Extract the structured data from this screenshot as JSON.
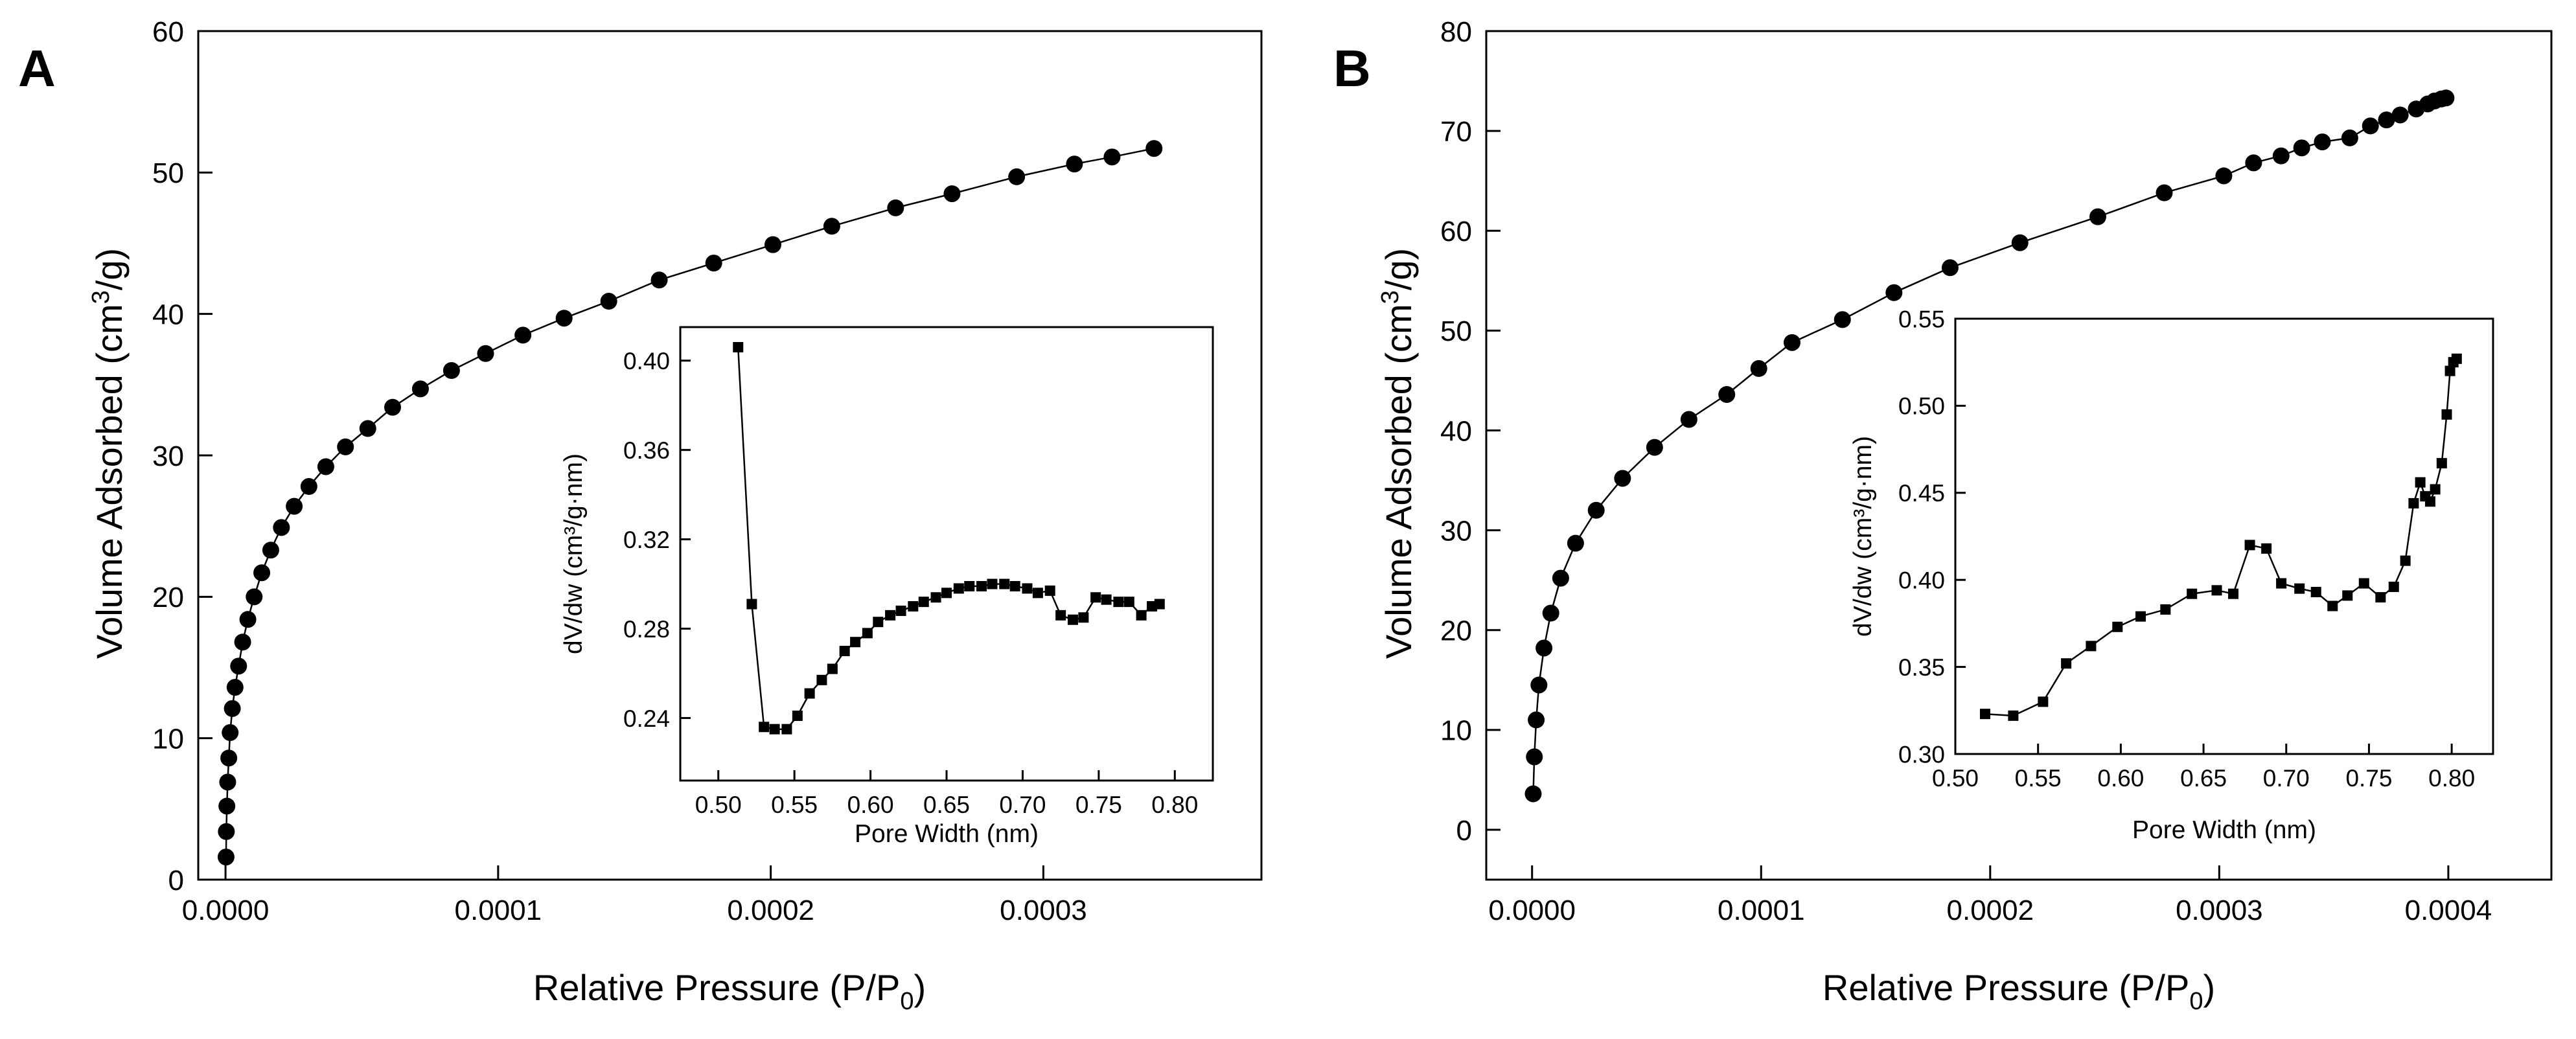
{
  "figure": {
    "panels": [
      "A",
      "B"
    ]
  },
  "chart_data": [
    {
      "panel": "A",
      "type": "scatter",
      "marker": "circle",
      "connected": true,
      "title": "",
      "xlabel": "Relative Pressure (P/P0)",
      "ylabel": "Volume Adsorbed (cm3/g)",
      "xlim": [
        -1e-05,
        0.00038
      ],
      "ylim": [
        0,
        60
      ],
      "xticks": [
        0.0,
        0.0001,
        0.0002,
        0.0003
      ],
      "xtick_labels": [
        "0.0000",
        "0.0001",
        "0.0002",
        "0.0003"
      ],
      "yticks": [
        0,
        10,
        20,
        30,
        40,
        50,
        60
      ],
      "ytick_labels": [
        "0",
        "10",
        "20",
        "30",
        "40",
        "50",
        "60"
      ],
      "x": [
        2e-07,
        3e-07,
        5e-07,
        8e-07,
        1.2e-06,
        1.7e-06,
        2.5e-06,
        3.5e-06,
        4.8e-06,
        6.3e-06,
        8.2e-06,
        1.05e-05,
        1.33e-05,
        1.66e-05,
        2.05e-05,
        2.52e-05,
        3.06e-05,
        3.68e-05,
        4.4e-05,
        5.22e-05,
        6.13e-05,
        7.15e-05,
        8.29e-05,
        9.54e-05,
        0.0001091,
        0.0001242,
        0.0001406,
        0.0001591,
        0.0001791,
        0.0002008,
        0.0002224,
        0.0002458,
        0.0002665,
        0.0002902,
        0.0003114,
        0.0003252,
        0.0003406
      ],
      "y": [
        1.6,
        3.4,
        5.2,
        6.9,
        8.6,
        10.4,
        12.1,
        13.6,
        15.1,
        16.8,
        18.4,
        20.0,
        21.7,
        23.3,
        24.9,
        26.4,
        27.8,
        29.2,
        30.6,
        31.9,
        33.4,
        34.7,
        36.0,
        37.2,
        38.5,
        39.7,
        40.9,
        42.4,
        43.6,
        44.9,
        46.2,
        47.5,
        48.5,
        49.7,
        50.6,
        51.1,
        51.7
      ],
      "inset": {
        "type": "line",
        "marker": "square",
        "xlabel": "Pore Width (nm)",
        "ylabel": "dV/dw (cm³/g·nm)",
        "xlim": [
          0.475,
          0.825
        ],
        "ylim": [
          0.212,
          0.415
        ],
        "xticks": [
          0.5,
          0.55,
          0.6,
          0.65,
          0.7,
          0.75,
          0.8
        ],
        "xtick_labels": [
          "0.50",
          "0.55",
          "0.60",
          "0.65",
          "0.70",
          "0.75",
          "0.80"
        ],
        "yticks": [
          0.24,
          0.28,
          0.32,
          0.36,
          0.4
        ],
        "ytick_labels": [
          "0.24",
          "0.28",
          "0.32",
          "0.36",
          "0.40"
        ],
        "x": [
          0.513,
          0.522,
          0.53,
          0.537,
          0.545,
          0.552,
          0.56,
          0.568,
          0.575,
          0.583,
          0.59,
          0.598,
          0.605,
          0.613,
          0.62,
          0.628,
          0.635,
          0.643,
          0.65,
          0.658,
          0.665,
          0.673,
          0.68,
          0.688,
          0.695,
          0.703,
          0.71,
          0.718,
          0.725,
          0.733,
          0.74,
          0.748,
          0.755,
          0.763,
          0.77,
          0.778,
          0.785,
          0.79
        ],
        "y": [
          0.406,
          0.291,
          0.236,
          0.235,
          0.235,
          0.241,
          0.251,
          0.257,
          0.262,
          0.27,
          0.274,
          0.278,
          0.283,
          0.286,
          0.288,
          0.29,
          0.292,
          0.294,
          0.296,
          0.298,
          0.299,
          0.299,
          0.3,
          0.3,
          0.299,
          0.298,
          0.296,
          0.297,
          0.286,
          0.284,
          0.285,
          0.294,
          0.293,
          0.292,
          0.292,
          0.286,
          0.29,
          0.291
        ]
      }
    },
    {
      "panel": "B",
      "type": "scatter",
      "marker": "circle",
      "connected": true,
      "title": "",
      "xlabel": "Relative Pressure (P/P0)",
      "ylabel": "Volume Adsorbed (cm3/g)",
      "xlim": [
        -2e-05,
        0.000445
      ],
      "ylim": [
        -5,
        80
      ],
      "xticks": [
        0.0,
        0.0001,
        0.0002,
        0.0003,
        0.0004
      ],
      "xtick_labels": [
        "0.0000",
        "0.0001",
        "0.0002",
        "0.0003",
        "0.0004"
      ],
      "yticks": [
        0,
        10,
        20,
        30,
        40,
        50,
        60,
        70,
        80
      ],
      "ytick_labels": [
        "0",
        "10",
        "20",
        "30",
        "40",
        "50",
        "60",
        "70",
        "80"
      ],
      "x": [
        5e-07,
        1e-06,
        1.8e-06,
        3e-06,
        5.2e-06,
        8.2e-06,
        1.25e-05,
        1.9e-05,
        2.8e-05,
        3.95e-05,
        5.35e-05,
        6.85e-05,
        8.5e-05,
        9.9e-05,
        0.0001135,
        0.0001355,
        0.000158,
        0.0001825,
        0.000213,
        0.000247,
        0.000276,
        0.000302,
        0.000315,
        0.000327,
        0.000336,
        0.000345,
        0.000357,
        0.000366,
        0.000373,
        0.000379,
        0.000386,
        0.000391,
        0.000394,
        0.000397,
        0.000399
      ],
      "y": [
        3.6,
        7.3,
        11.0,
        14.5,
        18.2,
        21.7,
        25.2,
        28.7,
        32.0,
        35.2,
        38.3,
        41.1,
        43.6,
        46.2,
        48.8,
        51.1,
        53.8,
        56.3,
        58.8,
        61.4,
        63.8,
        65.5,
        66.8,
        67.5,
        68.3,
        68.9,
        69.3,
        70.5,
        71.1,
        71.6,
        72.2,
        72.7,
        73.0,
        73.2,
        73.3
      ],
      "inset": {
        "type": "line",
        "marker": "square",
        "xlabel": "Pore Width (nm)",
        "ylabel": "dV/dw (cm³/g·nm)",
        "xlim": [
          0.5,
          0.825
        ],
        "ylim": [
          0.3,
          0.55
        ],
        "xticks": [
          0.5,
          0.55,
          0.6,
          0.65,
          0.7,
          0.75,
          0.8
        ],
        "xtick_labels": [
          "0.50",
          "0.55",
          "0.60",
          "0.65",
          "0.70",
          "0.75",
          "0.80"
        ],
        "yticks": [
          0.3,
          0.35,
          0.4,
          0.45,
          0.5,
          0.55
        ],
        "ytick_labels": [
          "0.30",
          "0.35",
          "0.40",
          "0.45",
          "0.50",
          "0.55"
        ],
        "x": [
          0.518,
          0.535,
          0.553,
          0.567,
          0.582,
          0.598,
          0.612,
          0.627,
          0.643,
          0.658,
          0.668,
          0.678,
          0.688,
          0.697,
          0.708,
          0.718,
          0.728,
          0.737,
          0.747,
          0.757,
          0.765,
          0.772,
          0.777,
          0.781,
          0.784,
          0.787,
          0.79,
          0.794,
          0.797,
          0.799,
          0.801,
          0.803
        ],
        "y": [
          0.323,
          0.322,
          0.33,
          0.352,
          0.362,
          0.373,
          0.379,
          0.383,
          0.392,
          0.394,
          0.392,
          0.42,
          0.418,
          0.398,
          0.395,
          0.393,
          0.385,
          0.391,
          0.398,
          0.39,
          0.396,
          0.411,
          0.444,
          0.456,
          0.448,
          0.445,
          0.452,
          0.467,
          0.495,
          0.52,
          0.525,
          0.527
        ]
      }
    }
  ]
}
